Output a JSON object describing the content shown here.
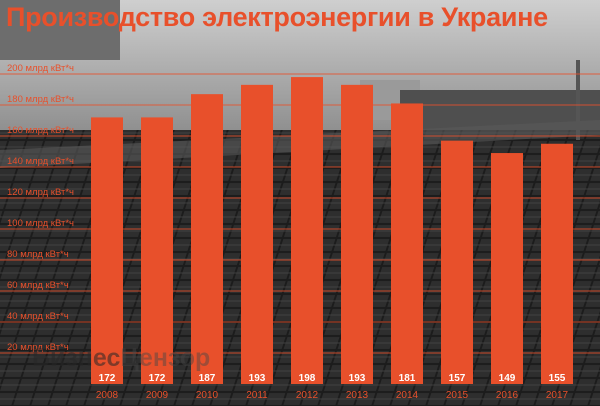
{
  "title": "Производство электроэнергии в Украине",
  "watermark": {
    "part1": "Бизнес",
    "part2": "Цензор"
  },
  "colors": {
    "accent": "#e8502b",
    "bar_label": "#ffffff",
    "axis_text": "#e8502b"
  },
  "chart_data": {
    "type": "bar",
    "title": "Производство электроэнергии в Украине",
    "categories": [
      "2008",
      "2009",
      "2010",
      "2011",
      "2012",
      "2013",
      "2014",
      "2015",
      "2016",
      "2017"
    ],
    "values": [
      172,
      172,
      187,
      193,
      198,
      193,
      181,
      157,
      149,
      155
    ],
    "data_labels": [
      "172",
      "172",
      "187",
      "193",
      "198",
      "193",
      "181",
      "157",
      "149",
      "155"
    ],
    "y_tick_values": [
      20,
      40,
      60,
      80,
      100,
      120,
      140,
      160,
      180,
      200
    ],
    "y_tick_labels": [
      "20 млрд кВт*ч",
      "40 млрд кВт*ч",
      "60 млрд кВт*ч",
      "80 млрд кВт*ч",
      "100 млрд кВт*ч",
      "120 млрд кВт*ч",
      "140 млрд кВт*ч",
      "160 млрд кВт*ч",
      "180 млрд кВт*ч",
      "200 млрд кВт*ч"
    ],
    "ylim": [
      0,
      210
    ],
    "grid": true,
    "xlabel": "",
    "ylabel": ""
  }
}
